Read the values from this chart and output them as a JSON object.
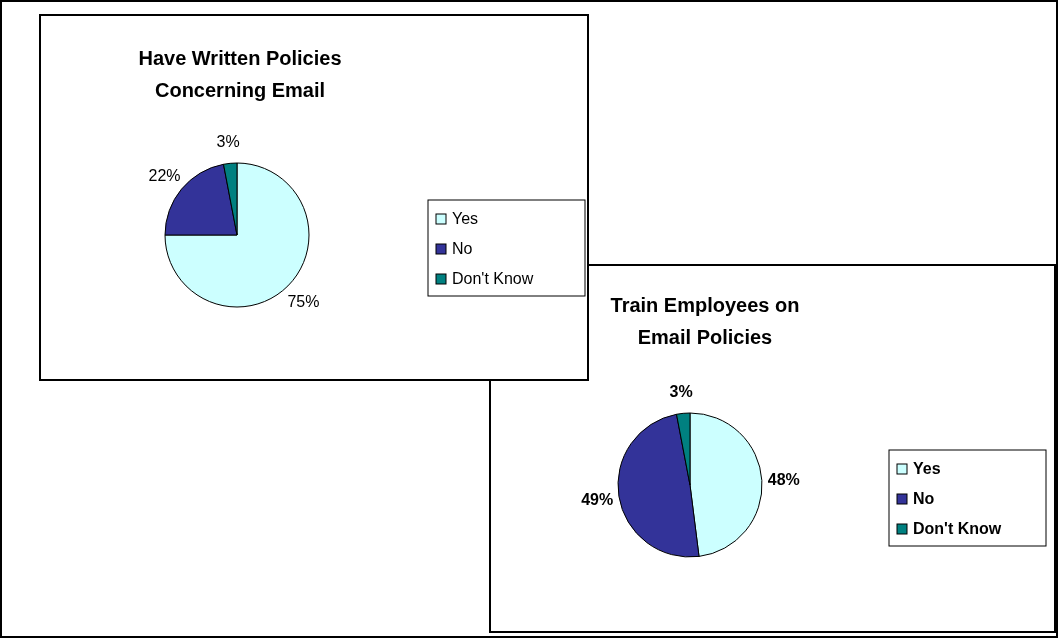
{
  "chart_data": [
    {
      "type": "pie",
      "title": "Have Written Policies Concerning Email",
      "categories": [
        "Yes",
        "No",
        "Don't Know"
      ],
      "values": [
        75,
        22,
        3
      ],
      "colors": [
        "#ccffff",
        "#333399",
        "#008080"
      ],
      "value_labels": [
        "75%",
        "22%",
        "3%"
      ],
      "legend": "right"
    },
    {
      "type": "pie",
      "title": "Train Employees on Email Policies",
      "categories": [
        "Yes",
        "No",
        "Don't Know"
      ],
      "values": [
        48,
        49,
        3
      ],
      "colors": [
        "#ccffff",
        "#333399",
        "#008080"
      ],
      "value_labels": [
        "48%",
        "49%",
        "3%"
      ],
      "legend": "right"
    }
  ]
}
